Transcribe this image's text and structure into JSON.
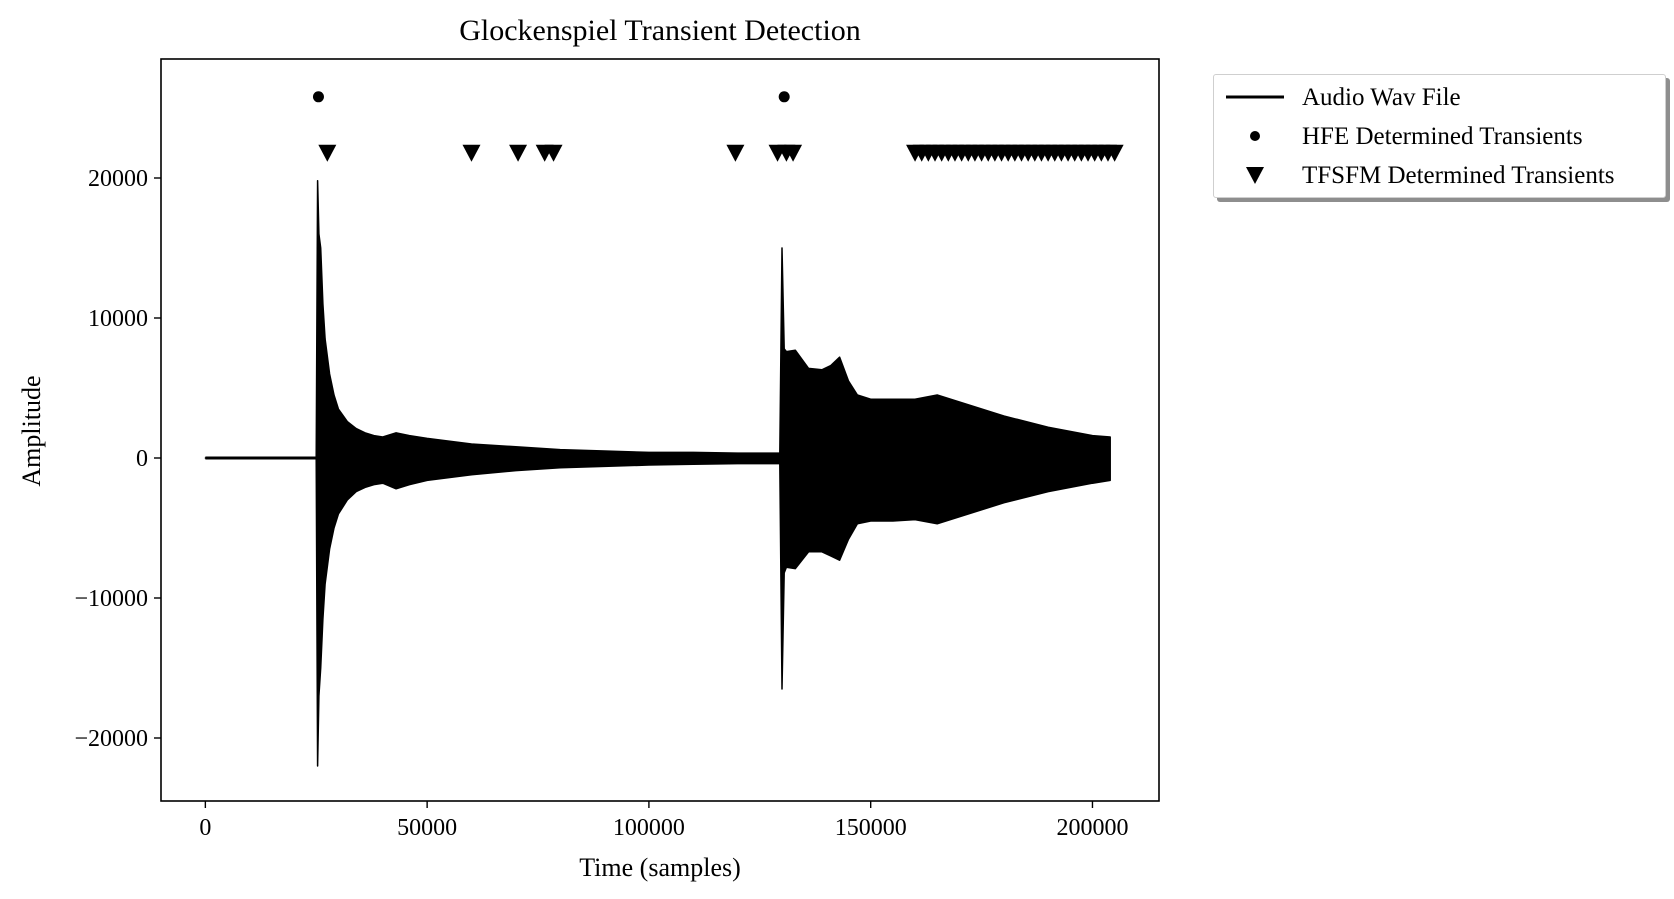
{
  "chart_data": {
    "type": "line",
    "title": "Glockenspiel Transient Detection",
    "xlabel": "Time (samples)",
    "ylabel": "Amplitude",
    "xlim": [
      -10000,
      215000
    ],
    "ylim": [
      -24500,
      28500
    ],
    "x_ticks": [
      0,
      50000,
      100000,
      150000,
      200000
    ],
    "x_tick_labels": [
      "0",
      "50000",
      "100000",
      "150000",
      "200000"
    ],
    "y_ticks": [
      -20000,
      -10000,
      0,
      10000,
      20000
    ],
    "y_tick_labels": [
      "−20000",
      "−10000",
      "0",
      "10000",
      "20000"
    ],
    "grid": false,
    "legend_placement": "outside-upper-right",
    "colors": {
      "line": "#000000",
      "markers": "#000000",
      "background": "#ffffff"
    },
    "series": [
      {
        "name": "Audio Wav File",
        "kind": "line-envelope",
        "x": [
          0,
          25000,
          25300,
          25600,
          26000,
          26500,
          27000,
          28000,
          29000,
          30000,
          32000,
          34000,
          36000,
          38000,
          40000,
          43000,
          46000,
          50000,
          60000,
          70000,
          80000,
          90000,
          100000,
          110000,
          120000,
          129500,
          130000,
          130500,
          131000,
          133000,
          136000,
          139000,
          141000,
          143000,
          145000,
          147000,
          150000,
          155000,
          160000,
          165000,
          170000,
          180000,
          190000,
          200000,
          204000
        ],
        "upper": [
          0,
          0,
          19800,
          16000,
          15000,
          11000,
          8500,
          6000,
          4500,
          3500,
          2600,
          2100,
          1800,
          1600,
          1500,
          1800,
          1600,
          1400,
          1000,
          800,
          600,
          500,
          400,
          400,
          350,
          350,
          15000,
          7800,
          7600,
          7700,
          6400,
          6300,
          6600,
          7200,
          5500,
          4500,
          4200,
          4200,
          4200,
          4500,
          4000,
          3000,
          2200,
          1600,
          1500
        ],
        "lower": [
          0,
          0,
          -22000,
          -17000,
          -15000,
          -11500,
          -9000,
          -6500,
          -5000,
          -4000,
          -3000,
          -2400,
          -2100,
          -1900,
          -1800,
          -2200,
          -1900,
          -1600,
          -1200,
          -900,
          -700,
          -600,
          -500,
          -450,
          -400,
          -400,
          -16500,
          -8200,
          -7800,
          -7900,
          -6700,
          -6700,
          -7000,
          -7300,
          -5800,
          -4700,
          -4500,
          -4500,
          -4400,
          -4700,
          -4200,
          -3200,
          -2400,
          -1800,
          -1600
        ]
      },
      {
        "name": "HFE Determined Transients",
        "kind": "scatter",
        "marker": "circle",
        "x": [
          25500,
          130500
        ],
        "y": [
          25800,
          25800
        ]
      },
      {
        "name": "TFSFM Determined Transients",
        "kind": "scatter",
        "marker": "triangle-down",
        "x": [
          27500,
          60000,
          70500,
          76500,
          78500,
          119500,
          129000,
          131000,
          132500,
          160000,
          161500,
          163000,
          164500,
          166000,
          167500,
          169000,
          170500,
          172000,
          173500,
          175000,
          176500,
          178000,
          179500,
          181000,
          182500,
          184000,
          185500,
          187000,
          188500,
          190000,
          191500,
          193000,
          194500,
          196000,
          197500,
          199000,
          200500,
          202000,
          203500,
          205000
        ],
        "y": [
          21800,
          21800,
          21800,
          21800,
          21800,
          21800,
          21800,
          21800,
          21800,
          21800,
          21800,
          21800,
          21800,
          21800,
          21800,
          21800,
          21800,
          21800,
          21800,
          21800,
          21800,
          21800,
          21800,
          21800,
          21800,
          21800,
          21800,
          21800,
          21800,
          21800,
          21800,
          21800,
          21800,
          21800,
          21800,
          21800,
          21800,
          21800,
          21800,
          21800
        ]
      }
    ]
  }
}
